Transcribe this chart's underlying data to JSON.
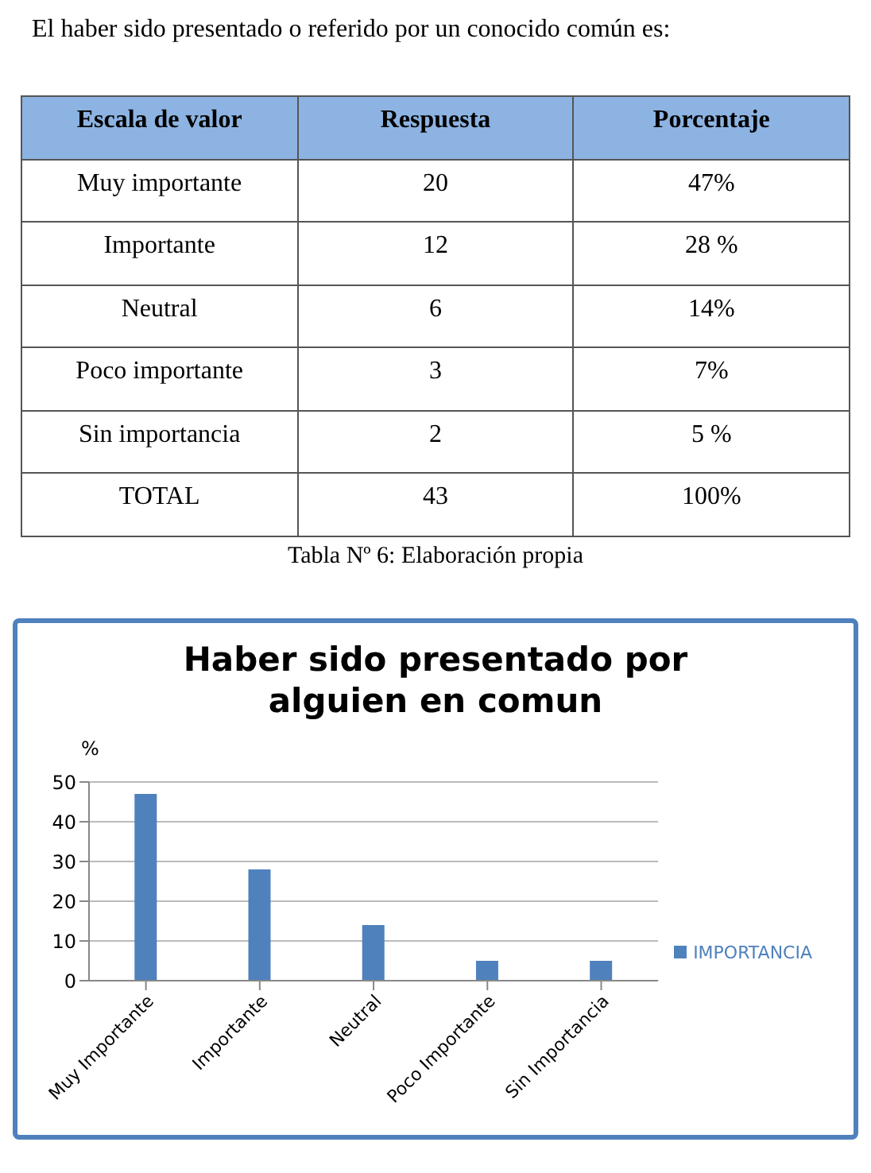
{
  "chart_data": [
    {
      "type": "other",
      "title": "El haber sido presentado o referido por un conocido común es:",
      "annotations": [
        "Escala de valor",
        "Respuesta",
        "Porcentaje",
        "Muy importante",
        "20",
        "47%",
        "Importante",
        "12",
        "28 %",
        "Neutral",
        "6",
        "14%",
        "Poco importante",
        "3",
        "7%",
        "Sin importancia",
        "2",
        "5 %",
        "TOTAL",
        "43",
        "100%",
        "Tabla Nº 6: Elaboración propia"
      ]
    },
    {
      "type": "bar",
      "title": "Haber sido presentado por alguien en comun",
      "ylabel": "%",
      "categories": [
        "Muy Importante",
        "Importante",
        "Neutral",
        "Poco Importante",
        "Sin Importancia"
      ],
      "series": [
        {
          "name": "IMPORTANCIA",
          "color": "#4f81bd",
          "values": [
            47,
            28,
            14,
            5,
            5
          ]
        }
      ],
      "ylim": [
        0,
        50
      ],
      "yticks": [
        0,
        10,
        20,
        30,
        40,
        50
      ],
      "grid": "y",
      "legend": "right"
    }
  ]
}
